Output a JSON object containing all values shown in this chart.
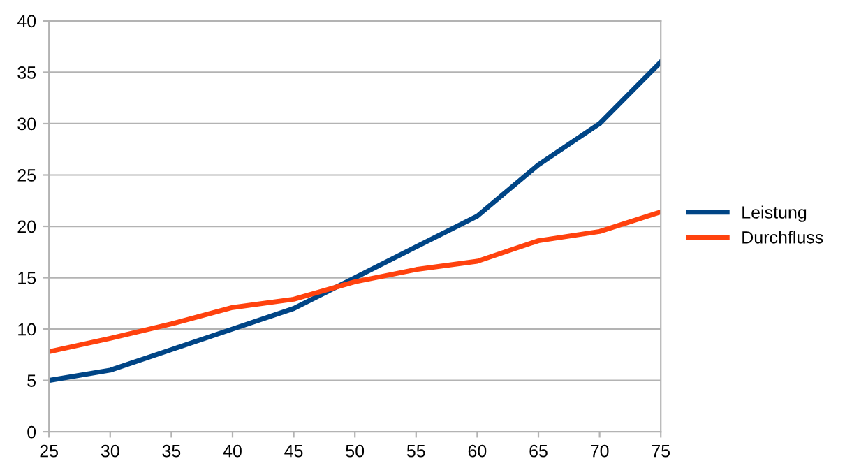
{
  "chart_data": {
    "type": "line",
    "x": [
      25,
      30,
      35,
      40,
      45,
      50,
      55,
      60,
      65,
      70,
      75
    ],
    "series": [
      {
        "name": "Leistung",
        "color": "#004586",
        "values": [
          5,
          6,
          8,
          10,
          12,
          15,
          18,
          21,
          26,
          30,
          36
        ]
      },
      {
        "name": "Durchfluss",
        "color": "#ff420e",
        "values": [
          7.8,
          9.1,
          10.5,
          12.1,
          12.9,
          14.6,
          15.8,
          16.6,
          18.6,
          19.5,
          21.4
        ]
      }
    ],
    "xlim": [
      25,
      75
    ],
    "xticks": [
      25,
      30,
      35,
      40,
      45,
      50,
      55,
      60,
      65,
      70,
      75
    ],
    "ylim": [
      0,
      40
    ],
    "yticks": [
      0,
      5,
      10,
      15,
      20,
      25,
      30,
      35,
      40
    ],
    "grid": "y",
    "legend": "right",
    "marker": "none",
    "line_style": "solid"
  }
}
